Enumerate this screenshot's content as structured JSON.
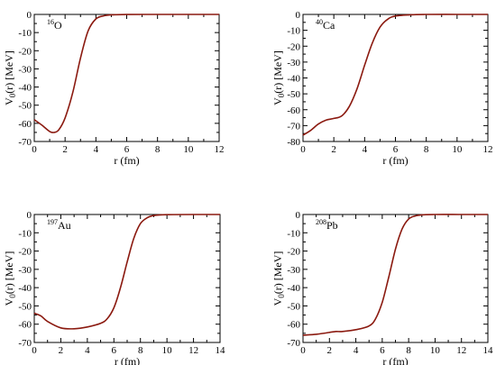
{
  "colors": {
    "curve": "#8b1a10",
    "frame": "#000000"
  },
  "chart_data": [
    {
      "type": "line",
      "nucleus": {
        "mass": "16",
        "symbol": "O"
      },
      "xlabel": "r (fm)",
      "ylabel": "V0(r)  [MeV]",
      "ylabel_main": "V",
      "ylabel_sub": "0",
      "ylabel_rest": "(r)  [MeV]",
      "xlim": [
        0,
        12
      ],
      "ylim": [
        -70,
        0
      ],
      "xticks": [
        0,
        2,
        4,
        6,
        8,
        10,
        12
      ],
      "yticks": [
        0,
        -10,
        -20,
        -30,
        -40,
        -50,
        -60,
        -70
      ],
      "series": [
        {
          "x": [
            0,
            0.5,
            1.0,
            1.3,
            1.6,
            2.0,
            2.5,
            3.0,
            3.5,
            4.0,
            4.5,
            5.0,
            6.0,
            8.0,
            10.0,
            12.0
          ],
          "y": [
            -58,
            -61,
            -64.5,
            -65,
            -63.5,
            -57,
            -43,
            -24,
            -9,
            -2.5,
            -0.8,
            -0.2,
            -0.05,
            0,
            0,
            0
          ]
        }
      ]
    },
    {
      "type": "line",
      "nucleus": {
        "mass": "40",
        "symbol": "Ca"
      },
      "xlabel": "r (fm)",
      "ylabel": "V0(r)  [MeV]",
      "ylabel_main": "V",
      "ylabel_sub": "0",
      "ylabel_rest": "(r)  [MeV]",
      "xlim": [
        0,
        12
      ],
      "ylim": [
        -80,
        0
      ],
      "xticks": [
        0,
        2,
        4,
        6,
        8,
        10,
        12
      ],
      "yticks": [
        0,
        -10,
        -20,
        -30,
        -40,
        -50,
        -60,
        -70,
        -80
      ],
      "series": [
        {
          "x": [
            0,
            0.5,
            1.0,
            1.5,
            2.0,
            2.5,
            3.0,
            3.5,
            4.0,
            4.5,
            5.0,
            5.5,
            6.0,
            7.0,
            8.0,
            10.0,
            12.0
          ],
          "y": [
            -76,
            -73,
            -69,
            -66.5,
            -65.5,
            -64,
            -58,
            -47,
            -32,
            -18,
            -8,
            -3,
            -1,
            -0.2,
            0,
            0,
            0
          ]
        }
      ]
    },
    {
      "type": "line",
      "nucleus": {
        "mass": "197",
        "symbol": "Au"
      },
      "xlabel": "r (fm)",
      "ylabel": "V0(r)  [MeV]",
      "ylabel_main": "V",
      "ylabel_sub": "0",
      "ylabel_rest": "(r)  [MeV]",
      "xlim": [
        0,
        14
      ],
      "ylim": [
        -70,
        0
      ],
      "xticks": [
        0,
        2,
        4,
        6,
        8,
        10,
        12,
        14
      ],
      "yticks": [
        0,
        -10,
        -20,
        -30,
        -40,
        -50,
        -60,
        -70
      ],
      "series": [
        {
          "x": [
            0,
            0.5,
            1.0,
            2.0,
            3.0,
            4.0,
            5.0,
            5.5,
            6.0,
            6.5,
            7.0,
            7.5,
            8.0,
            8.5,
            9.0,
            10.0,
            12.0,
            14.0
          ],
          "y": [
            -54,
            -55.5,
            -58.5,
            -62,
            -62.5,
            -61.5,
            -59.5,
            -57,
            -51,
            -40,
            -26,
            -13,
            -5,
            -1.8,
            -0.6,
            -0.1,
            0,
            0
          ]
        }
      ]
    },
    {
      "type": "line",
      "nucleus": {
        "mass": "208",
        "symbol": "Pb"
      },
      "xlabel": "r (fm)",
      "ylabel": "V0(r)  [MeV]",
      "ylabel_main": "V",
      "ylabel_sub": "0",
      "ylabel_rest": "(r)  [MeV]",
      "xlim": [
        0,
        14
      ],
      "ylim": [
        -70,
        0
      ],
      "xticks": [
        0,
        2,
        4,
        6,
        8,
        10,
        12,
        14
      ],
      "yticks": [
        0,
        -10,
        -20,
        -30,
        -40,
        -50,
        -60,
        -70
      ],
      "series": [
        {
          "x": [
            0,
            1.0,
            2.0,
            2.5,
            3.0,
            4.0,
            5.0,
            5.5,
            6.0,
            6.5,
            7.0,
            7.5,
            8.0,
            8.5,
            9.0,
            10.0,
            12.0,
            14.0
          ],
          "y": [
            -66,
            -65.5,
            -64.5,
            -64,
            -64,
            -63,
            -61,
            -57,
            -48,
            -34,
            -19,
            -8,
            -2.5,
            -0.8,
            -0.2,
            0,
            0,
            0
          ]
        }
      ]
    }
  ]
}
